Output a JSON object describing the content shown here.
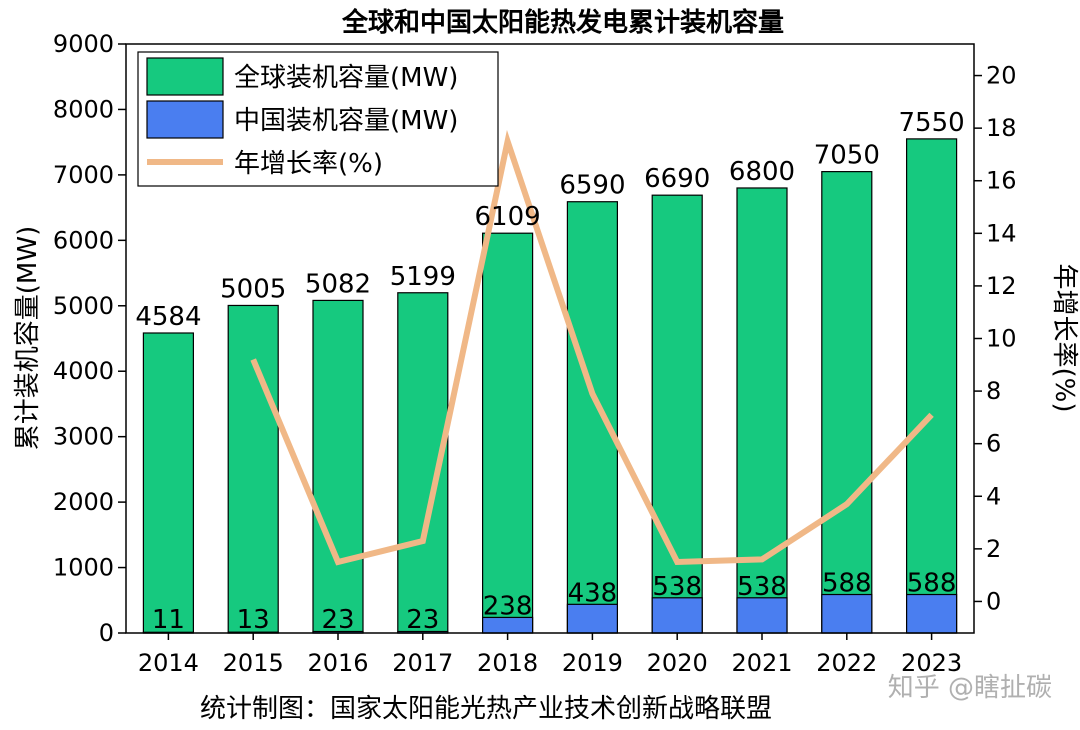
{
  "chart_data": {
    "type": "bar",
    "title": "全球和中国太阳能热发电累计装机容量",
    "categories": [
      "2014",
      "2015",
      "2016",
      "2017",
      "2018",
      "2019",
      "2020",
      "2021",
      "2022",
      "2023"
    ],
    "series": [
      {
        "name": "全球装机容量(MW)",
        "values": [
          4584,
          5005,
          5082,
          5199,
          6109,
          6590,
          6690,
          6800,
          7050,
          7550
        ],
        "color": "#16c97f"
      },
      {
        "name": "中国装机容量(MW)",
        "values": [
          11,
          13,
          23,
          23,
          238,
          438,
          538,
          538,
          588,
          588
        ],
        "color": "#4a7ef0"
      },
      {
        "name": "年增长率(%)",
        "type": "line",
        "axis": "right",
        "values": [
          null,
          9.2,
          1.5,
          2.3,
          17.5,
          7.9,
          1.5,
          1.6,
          3.7,
          7.1
        ],
        "color": "#f0b887"
      }
    ],
    "ylabel": "累计装机容量(MW)",
    "ylim": [
      0,
      9000
    ],
    "yticks": [
      0,
      1000,
      2000,
      3000,
      4000,
      5000,
      6000,
      7000,
      8000,
      9000
    ],
    "y2label": "年增长率(%)",
    "y2lim": [
      -1.2,
      21.2
    ],
    "y2ticks": [
      0,
      2,
      4,
      6,
      8,
      10,
      12,
      14,
      16,
      18,
      20
    ],
    "legend_position": "top-left",
    "grid": false
  },
  "footer": {
    "source": "统计制图：国家太阳能光热产业技术创新战略联盟",
    "watermark": "知乎 @瞎扯碳"
  }
}
